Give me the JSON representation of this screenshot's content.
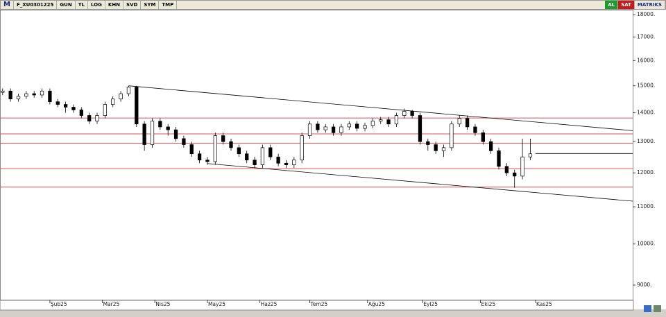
{
  "toolbar": {
    "logo": "M",
    "symbol": "F_XU0301225",
    "buttons": [
      "GUN",
      "TL",
      "LOG",
      "KHN",
      "SVD",
      "SYM",
      "TMP"
    ],
    "buy": "AL",
    "sell": "SAT",
    "brand": "MATRIKS"
  },
  "chart_data": {
    "type": "candlestick",
    "log_scale": true,
    "up_color": "#ffffff",
    "down_color": "#000000",
    "line_color": "#000000",
    "hline_color": "#e05050",
    "xlim": [
      -1,
      240
    ],
    "ylim": [
      8670,
      18230
    ],
    "xticks": [
      {
        "value": 18,
        "label": "Şub25"
      },
      {
        "value": 38,
        "label": "Mar25"
      },
      {
        "value": 58,
        "label": "Nis25"
      },
      {
        "value": 78,
        "label": "May25"
      },
      {
        "value": 98,
        "label": "Haz25"
      },
      {
        "value": 117,
        "label": "Tem25"
      },
      {
        "value": 139,
        "label": "Ağu25"
      },
      {
        "value": 160,
        "label": "Eyl25"
      },
      {
        "value": 182,
        "label": "Eki25"
      },
      {
        "value": 203,
        "label": "Kas25"
      }
    ],
    "yticks": [
      {
        "value": 9000,
        "label": "9000."
      },
      {
        "value": 10000,
        "label": "10000."
      },
      {
        "value": 11000,
        "label": "11000."
      },
      {
        "value": 12000,
        "label": "12000."
      },
      {
        "value": 13000,
        "label": "13000."
      },
      {
        "value": 14000,
        "label": "14000."
      },
      {
        "value": 15000,
        "label": "15000."
      },
      {
        "value": 16000,
        "label": "16000."
      },
      {
        "value": 17000,
        "label": "17000."
      },
      {
        "value": 18000,
        "label": "18000."
      }
    ],
    "x": [
      0,
      3,
      6,
      9,
      12,
      15,
      18,
      21,
      24,
      27,
      30,
      33,
      36,
      39,
      42,
      45,
      48,
      51,
      54,
      57,
      60,
      63,
      66,
      69,
      72,
      75,
      78,
      81,
      84,
      87,
      90,
      93,
      96,
      99,
      102,
      105,
      108,
      111,
      114,
      117,
      120,
      123,
      126,
      129,
      132,
      135,
      138,
      141,
      144,
      147,
      150,
      153,
      156,
      159,
      162,
      165,
      168,
      171,
      174,
      177,
      180,
      183,
      186,
      189,
      192,
      195,
      198,
      201
    ],
    "open": [
      14750,
      14800,
      14500,
      14600,
      14700,
      14650,
      14800,
      14400,
      14300,
      14200,
      14100,
      13900,
      13700,
      13900,
      14300,
      14500,
      14700,
      14950,
      13600,
      12900,
      13700,
      13500,
      13400,
      13100,
      12900,
      12600,
      12400,
      12350,
      13200,
      13000,
      12800,
      12600,
      12400,
      12250,
      12800,
      12500,
      12300,
      12250,
      12400,
      13200,
      13600,
      13400,
      13500,
      13300,
      13500,
      13600,
      13450,
      13550,
      13700,
      13750,
      13600,
      13900,
      14050,
      13900,
      13000,
      12900,
      12700,
      12800,
      13600,
      13800,
      13500,
      13300,
      13000,
      12700,
      12200,
      12000,
      11900,
      12500
    ],
    "high": [
      14900,
      14900,
      14700,
      14800,
      14800,
      14900,
      14900,
      14500,
      14400,
      14300,
      14200,
      14000,
      14000,
      14400,
      14600,
      14800,
      15000,
      15000,
      13700,
      13800,
      13800,
      13600,
      13500,
      13200,
      13000,
      12700,
      12500,
      13300,
      13300,
      13100,
      12900,
      12700,
      12500,
      12900,
      12900,
      12600,
      12400,
      12500,
      13300,
      13700,
      13700,
      13600,
      13600,
      13600,
      13700,
      13700,
      13650,
      13800,
      13850,
      13850,
      14000,
      14150,
      14100,
      14000,
      13100,
      13000,
      12900,
      13700,
      13900,
      13900,
      13600,
      13400,
      13100,
      12800,
      12300,
      12100,
      13100,
      13100
    ],
    "low": [
      14650,
      14400,
      14400,
      14500,
      14550,
      14550,
      14300,
      14200,
      14000,
      14000,
      13800,
      13600,
      13600,
      13800,
      14200,
      14400,
      14600,
      13500,
      12700,
      12800,
      13400,
      13200,
      13000,
      12800,
      12500,
      12300,
      12250,
      12250,
      12900,
      12700,
      12500,
      12300,
      12150,
      12150,
      12400,
      12200,
      12150,
      12150,
      12300,
      13100,
      13300,
      13300,
      13200,
      13200,
      13400,
      13350,
      13350,
      13450,
      13600,
      13500,
      13500,
      13800,
      13800,
      12900,
      12700,
      12600,
      12500,
      12700,
      13500,
      13400,
      13200,
      12900,
      12600,
      12100,
      11900,
      11550,
      11800,
      12400
    ],
    "close": [
      14800,
      14500,
      14600,
      14700,
      14650,
      14800,
      14400,
      14300,
      14200,
      14100,
      13900,
      13700,
      13900,
      14300,
      14500,
      14700,
      14950,
      13600,
      12900,
      13700,
      13500,
      13400,
      13100,
      12900,
      12600,
      12400,
      12350,
      13200,
      13000,
      12800,
      12600,
      12400,
      12250,
      12800,
      12500,
      12300,
      12250,
      12400,
      13200,
      13600,
      13400,
      13500,
      13300,
      13500,
      13600,
      13450,
      13550,
      13700,
      13750,
      13600,
      13900,
      14050,
      13900,
      13000,
      12900,
      12700,
      12800,
      13600,
      13800,
      13500,
      13300,
      13000,
      12700,
      12200,
      12000,
      11900,
      12500,
      12600
    ],
    "hlines": [
      13810,
      13260,
      12950,
      12130,
      11570
    ],
    "trendlines": [
      {
        "x": [
          48,
          240
        ],
        "values": [
          15000,
          13370
        ]
      },
      {
        "x": [
          78,
          240
        ],
        "values": [
          12290,
          11160
        ]
      }
    ],
    "last_price_line": {
      "x": [
        203,
        240
      ],
      "value": 12610
    }
  }
}
